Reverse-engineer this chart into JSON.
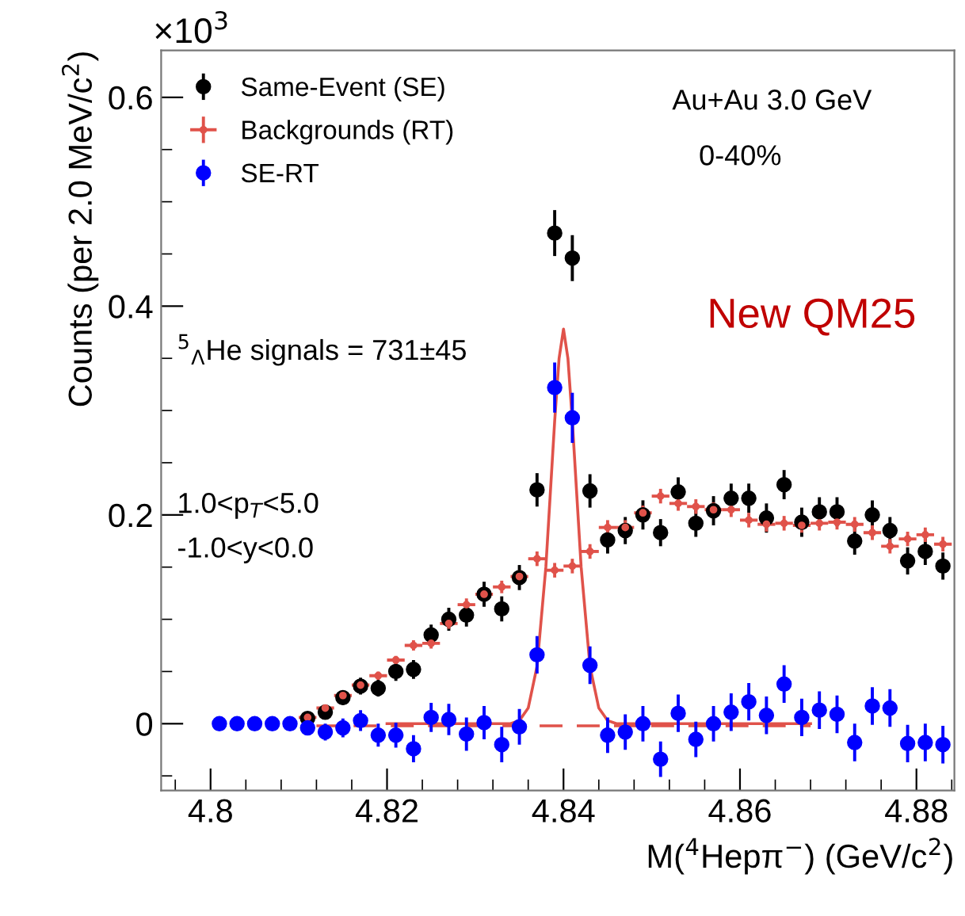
{
  "chart_data": {
    "type": "scatter",
    "xlabel": "M($^{4}$Hepπ$^{−}$) (GeV/c$^{2}$)",
    "ylabel": "Counts (per 2.0 MeV/c$^{2}$)",
    "xlim": [
      4.7944,
      4.8843
    ],
    "ylim": [
      -0.064,
      0.645
    ],
    "xticks": [
      4.8,
      4.82,
      4.84,
      4.86,
      4.88
    ],
    "yticks": [
      0,
      0.2,
      0.4,
      0.6
    ],
    "legend": "top left",
    "grid": false,
    "annotations": [
      "×10$^{3}$",
      "Au+Au 3.0 GeV",
      "0-40%",
      "New QM25",
      "$^{5}$$_{Λ}$He signals = 731±45",
      "1.0<p$_{T}$<5.0",
      "-1.0<y<0.0"
    ],
    "series": [
      {
        "name": "Same-Event (SE)",
        "color": "#000000",
        "marker": "circle",
        "x": [
          4.811,
          4.813,
          4.815,
          4.817,
          4.819,
          4.821,
          4.823,
          4.825,
          4.827,
          4.829,
          4.831,
          4.833,
          4.835,
          4.837,
          4.839,
          4.841,
          4.843,
          4.845,
          4.847,
          4.849,
          4.851,
          4.853,
          4.855,
          4.857,
          4.859,
          4.861,
          4.863,
          4.865,
          4.867,
          4.869,
          4.871,
          4.873,
          4.875,
          4.877,
          4.879,
          4.881,
          4.883
        ],
        "values": [
          0.005,
          0.011,
          0.025,
          0.036,
          0.034,
          0.05,
          0.052,
          0.085,
          0.1,
          0.104,
          0.124,
          0.11,
          0.14,
          0.224,
          0.47,
          0.446,
          0.223,
          0.176,
          0.185,
          0.2,
          0.183,
          0.222,
          0.192,
          0.204,
          0.216,
          0.216,
          0.197,
          0.229,
          0.193,
          0.203,
          0.203,
          0.175,
          0.2,
          0.185,
          0.156,
          0.165,
          0.151
        ],
        "errors": [
          0.005,
          0.006,
          0.007,
          0.008,
          0.008,
          0.009,
          0.009,
          0.01,
          0.011,
          0.011,
          0.012,
          0.012,
          0.012,
          0.016,
          0.022,
          0.022,
          0.016,
          0.013,
          0.013,
          0.014,
          0.013,
          0.014,
          0.013,
          0.014,
          0.014,
          0.014,
          0.014,
          0.014,
          0.014,
          0.014,
          0.014,
          0.013,
          0.014,
          0.013,
          0.013,
          0.013,
          0.013
        ]
      },
      {
        "name": "Backgrounds (RT)",
        "color": "#e0524a",
        "marker": "circle",
        "x": [
          4.811,
          4.813,
          4.815,
          4.817,
          4.819,
          4.821,
          4.823,
          4.825,
          4.827,
          4.829,
          4.831,
          4.833,
          4.835,
          4.837,
          4.839,
          4.841,
          4.843,
          4.845,
          4.847,
          4.849,
          4.851,
          4.853,
          4.855,
          4.857,
          4.859,
          4.861,
          4.863,
          4.865,
          4.867,
          4.869,
          4.871,
          4.873,
          4.875,
          4.877,
          4.879,
          4.881,
          4.883
        ],
        "values": [
          0.006,
          0.015,
          0.027,
          0.037,
          0.046,
          0.061,
          0.075,
          0.077,
          0.096,
          0.114,
          0.124,
          0.131,
          0.141,
          0.158,
          0.147,
          0.151,
          0.165,
          0.188,
          0.188,
          0.202,
          0.218,
          0.211,
          0.208,
          0.205,
          0.205,
          0.195,
          0.191,
          0.192,
          0.19,
          0.192,
          0.193,
          0.191,
          0.183,
          0.17,
          0.177,
          0.181,
          0.172
        ],
        "xerrors": [
          0.001,
          0.001,
          0.001,
          0.001,
          0.001,
          0.001,
          0.001,
          0.001,
          0.001,
          0.001,
          0.001,
          0.001,
          0.001,
          0.001,
          0.001,
          0.001,
          0.001,
          0.001,
          0.001,
          0.001,
          0.001,
          0.001,
          0.001,
          0.001,
          0.001,
          0.001,
          0.001,
          0.001,
          0.001,
          0.001,
          0.001,
          0.001,
          0.001,
          0.001,
          0.001,
          0.001,
          0.001
        ],
        "errors": [
          0.002,
          0.003,
          0.003,
          0.004,
          0.004,
          0.004,
          0.005,
          0.005,
          0.005,
          0.006,
          0.006,
          0.006,
          0.006,
          0.007,
          0.007,
          0.007,
          0.007,
          0.007,
          0.007,
          0.007,
          0.007,
          0.007,
          0.007,
          0.007,
          0.007,
          0.007,
          0.007,
          0.007,
          0.007,
          0.007,
          0.007,
          0.007,
          0.007,
          0.007,
          0.007,
          0.007,
          0.007
        ]
      },
      {
        "name": "SE-RT",
        "color": "#0000ff",
        "marker": "circle",
        "x": [
          4.801,
          4.803,
          4.805,
          4.807,
          4.809,
          4.811,
          4.813,
          4.815,
          4.817,
          4.819,
          4.821,
          4.823,
          4.825,
          4.827,
          4.829,
          4.831,
          4.833,
          4.835,
          4.837,
          4.839,
          4.841,
          4.843,
          4.845,
          4.847,
          4.849,
          4.851,
          4.853,
          4.855,
          4.857,
          4.859,
          4.861,
          4.863,
          4.865,
          4.867,
          4.869,
          4.871,
          4.873,
          4.875,
          4.877,
          4.879,
          4.881,
          4.883
        ],
        "values": [
          0,
          0,
          0,
          0,
          0,
          -0.004,
          -0.008,
          -0.004,
          0.003,
          -0.011,
          -0.011,
          -0.024,
          0.006,
          0.004,
          -0.01,
          0.001,
          -0.02,
          -0.003,
          0.066,
          0.322,
          0.293,
          0.056,
          -0.011,
          -0.008,
          0,
          -0.034,
          0.01,
          -0.015,
          0,
          0.011,
          0.021,
          0.008,
          0.038,
          0.006,
          0.013,
          0.009,
          -0.018,
          0.017,
          0.015,
          -0.019,
          -0.018,
          -0.02
        ],
        "errors": [
          0.002,
          0.002,
          0.002,
          0.002,
          0.003,
          0.006,
          0.008,
          0.009,
          0.01,
          0.011,
          0.012,
          0.013,
          0.014,
          0.015,
          0.016,
          0.016,
          0.017,
          0.017,
          0.018,
          0.024,
          0.024,
          0.018,
          0.017,
          0.017,
          0.017,
          0.017,
          0.018,
          0.017,
          0.017,
          0.018,
          0.018,
          0.018,
          0.018,
          0.018,
          0.018,
          0.018,
          0.018,
          0.018,
          0.018,
          0.018,
          0.018,
          0.018
        ]
      },
      {
        "type": "line",
        "color": "#e0524a",
        "line_style": "solid",
        "x": [
          4.82,
          4.834,
          4.835,
          4.836,
          4.837,
          4.838,
          4.839,
          4.8395,
          4.84,
          4.8405,
          4.841,
          4.842,
          4.843,
          4.844,
          4.845,
          4.846,
          4.868
        ],
        "values": [
          0,
          0,
          0.003,
          0.015,
          0.055,
          0.15,
          0.29,
          0.35,
          0.378,
          0.35,
          0.29,
          0.15,
          0.055,
          0.015,
          0.003,
          0,
          0
        ]
      },
      {
        "type": "line",
        "color": "#e0524a",
        "line_style": "dashed",
        "x": [
          4.812,
          4.868
        ],
        "values": [
          -0.002,
          -0.002
        ]
      }
    ]
  }
}
